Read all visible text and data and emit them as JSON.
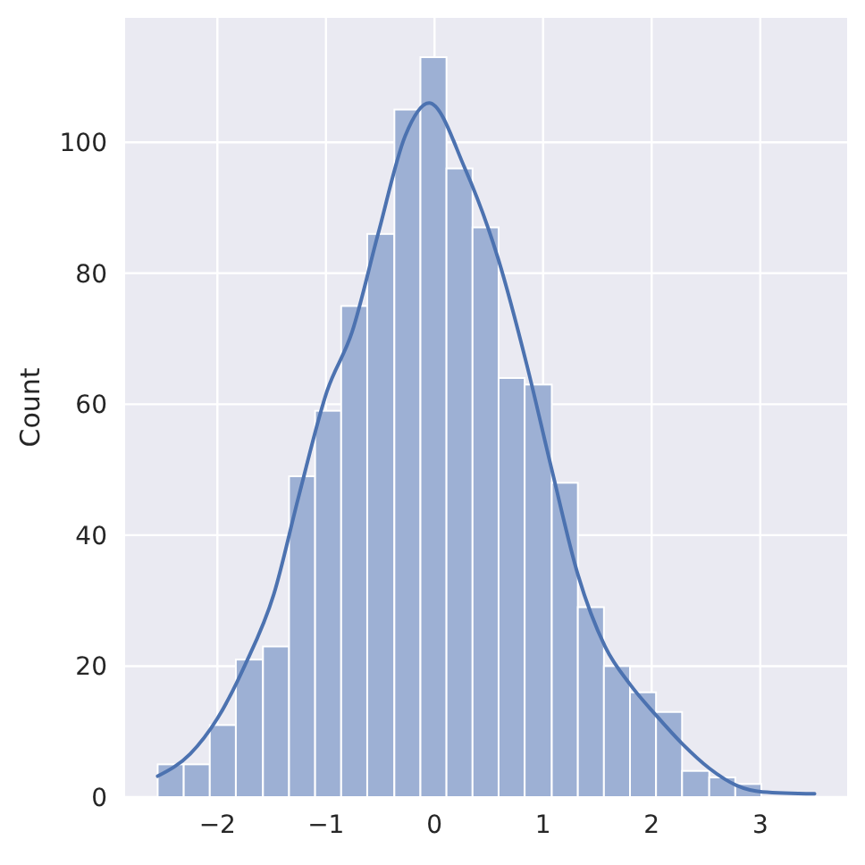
{
  "chart_data": {
    "type": "histogram",
    "ylabel": "Count",
    "bins": [
      -2.55,
      -2.31,
      -2.07,
      -1.83,
      -1.58,
      -1.34,
      -1.1,
      -0.86,
      -0.62,
      -0.37,
      -0.13,
      0.11,
      0.35,
      0.59,
      0.83,
      1.08,
      1.32,
      1.56,
      1.8,
      2.04,
      2.28,
      2.53,
      2.77,
      3.01
    ],
    "values": [
      5,
      5,
      11,
      21,
      23,
      49,
      59,
      75,
      86,
      105,
      113,
      96,
      87,
      64,
      63,
      48,
      29,
      20,
      16,
      13,
      4,
      3,
      2
    ],
    "color": "#9db0d4",
    "series": [
      {
        "type": "line",
        "color": "#4c72b0",
        "x": [
          -2.55,
          -2.25,
          -2.0,
          -1.75,
          -1.48,
          -1.25,
          -0.99,
          -0.76,
          -0.52,
          -0.27,
          -0.05,
          0.28,
          0.59,
          0.85,
          1.08,
          1.32,
          1.57,
          1.81,
          2.04,
          2.29,
          2.53,
          2.78,
          3.02,
          3.5
        ],
        "values": [
          3.2,
          6.6,
          12,
          20,
          31,
          46,
          62,
          71,
          86,
          101,
          106,
          96,
          82,
          66,
          50,
          34,
          23,
          17,
          12.5,
          8,
          4.4,
          1.8,
          0.8,
          0.5
        ]
      }
    ],
    "xlim": [
      -2.85,
      3.8
    ],
    "ylim": [
      0,
      119
    ],
    "xticks": [
      {
        "value": -2,
        "label": "−2"
      },
      {
        "value": -1,
        "label": "−1"
      },
      0,
      1,
      2,
      3
    ],
    "yticks": [
      0,
      20,
      40,
      60,
      80,
      100
    ],
    "grid": true
  }
}
